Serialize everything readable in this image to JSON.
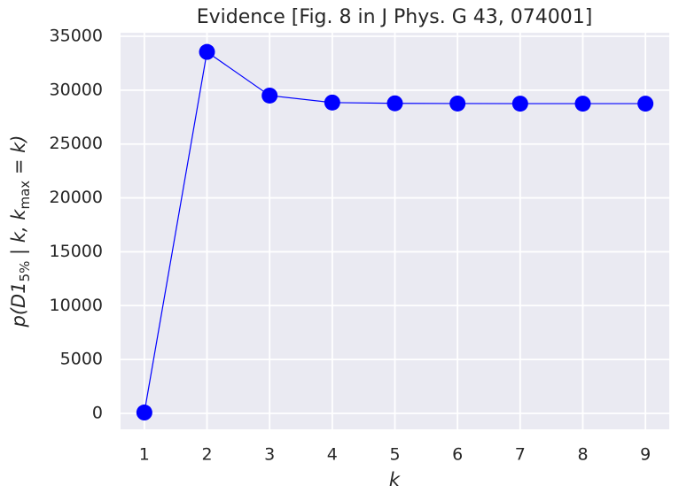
{
  "chart_data": {
    "type": "line",
    "title": "Evidence [Fig. 8 in J Phys. G 43, 074001]",
    "xlabel": "k",
    "ylabel_parts": [
      "p(D1",
      "5%",
      " | k, k",
      "max",
      " = k)"
    ],
    "ylabel_subscript": [
      false,
      true,
      false,
      true,
      false
    ],
    "x": [
      1,
      2,
      3,
      4,
      5,
      6,
      7,
      8,
      9
    ],
    "series": [
      {
        "name": "evidence",
        "color": "#0000ff",
        "values": [
          80,
          33550,
          29500,
          28850,
          28780,
          28760,
          28750,
          28750,
          28750
        ]
      }
    ],
    "xlim": [
      0.62,
      9.38
    ],
    "ylim": [
      -1480,
      35330
    ],
    "xticks": [
      1,
      2,
      3,
      4,
      5,
      6,
      7,
      8,
      9
    ],
    "yticks": [
      0,
      5000,
      10000,
      15000,
      20000,
      25000,
      30000,
      35000
    ],
    "grid": true,
    "marker": "circle"
  }
}
